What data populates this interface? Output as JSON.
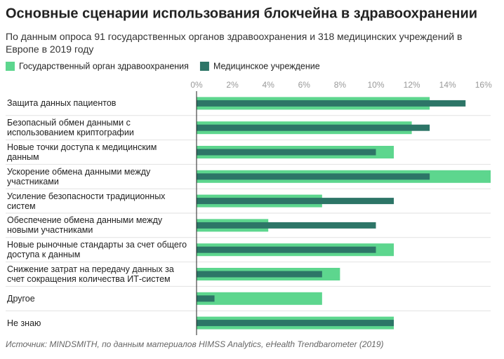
{
  "chart_data": {
    "type": "hbar_overlay",
    "title": "Основные сценарии использования блокчейна в здравоохранении",
    "subtitle": "По данным опроса 91 государственных органов здравоохранения и 318 медицинских учреждений в Европе в 2019 году",
    "source": "Источник: MINDSMITH, по данным материалов HIMSS Analytics, eHealth Trendbarometer (2019)",
    "categories": [
      "Защита данных пациентов",
      "Безопасный обмен данными с использованием криптографии",
      "Новые точки доступа к медицинским данным",
      "Ускорение обмена данными между участниками",
      "Усиление безопасности традиционных систем",
      "Обеспечение обмена данными между новыми участниками",
      "Новые рыночные стандарты за счет общего доступа к данным",
      "Снижение затрат на передачу данных за счет сокращения количества ИТ-систем",
      "Другое",
      "Не знаю"
    ],
    "series": [
      {
        "name": "Государственный орган здравоохранения",
        "color": "#5dd68e",
        "values": [
          13,
          12,
          11,
          16.4,
          7,
          4,
          11,
          8,
          7,
          11
        ]
      },
      {
        "name": "Медицинское учреждение",
        "color": "#2d7567",
        "values": [
          15,
          13,
          10,
          13,
          11,
          10,
          10,
          7,
          1,
          11
        ]
      }
    ],
    "xlim": [
      0,
      16.4
    ],
    "xticks": [
      {
        "value": 0,
        "label": "0%"
      },
      {
        "value": 2,
        "label": "2%"
      },
      {
        "value": 4,
        "label": "4%"
      },
      {
        "value": 6,
        "label": "6%"
      },
      {
        "value": 8,
        "label": "8%"
      },
      {
        "value": 10,
        "label": "10%"
      },
      {
        "value": 12,
        "label": "12%"
      },
      {
        "value": 14,
        "label": "14%"
      },
      {
        "value": 16,
        "label": "16%"
      }
    ]
  }
}
